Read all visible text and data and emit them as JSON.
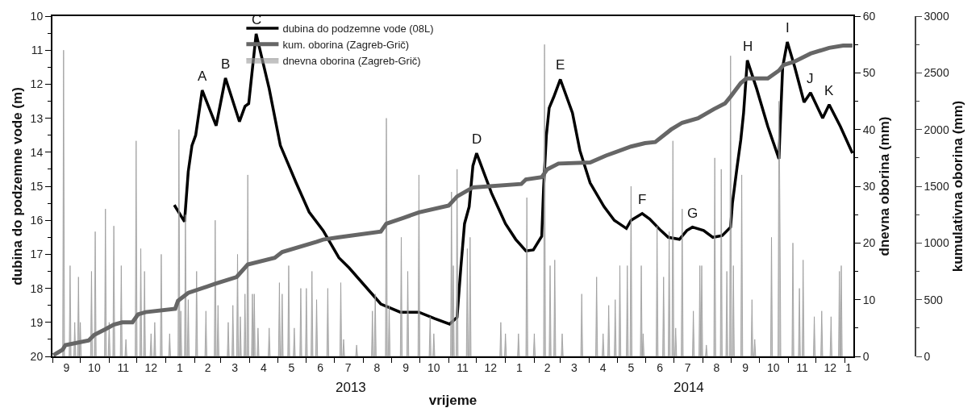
{
  "chart_data": {
    "type": "line",
    "xlabel": "vrijeme",
    "ylabel": "dubina do podzemne vode (m)",
    "y2label": "dnevna oborina (mm)",
    "y3label": "kumulativna oborina (mm)",
    "xlim": [
      "2012-09-01",
      "2015-01-10"
    ],
    "xticks": [
      {
        "value": "2012-09-01",
        "label": null
      },
      {
        "value": "2012-10-01",
        "label": null
      },
      {
        "value": "2012-11-01",
        "label": null
      },
      {
        "value": "2012-12-01",
        "label": null
      },
      {
        "value": "2013-01-01",
        "label": null
      },
      {
        "value": "2013-02-01",
        "label": null
      },
      {
        "value": "2013-03-01",
        "label": null
      },
      {
        "value": "2013-04-01",
        "label": null
      },
      {
        "value": "2013-05-01",
        "label": null
      },
      {
        "value": "2013-06-01",
        "label": null
      },
      {
        "value": "2013-07-01",
        "label": null
      },
      {
        "value": "2013-08-01",
        "label": null
      },
      {
        "value": "2013-09-01",
        "label": null
      },
      {
        "value": "2013-10-01",
        "label": null
      },
      {
        "value": "2013-11-01",
        "label": null
      },
      {
        "value": "2013-12-01",
        "label": null
      },
      {
        "value": "2014-01-01",
        "label": null
      },
      {
        "value": "2014-02-01",
        "label": null
      },
      {
        "value": "2014-03-01",
        "label": null
      },
      {
        "value": "2014-04-01",
        "label": null
      },
      {
        "value": "2014-05-01",
        "label": null
      },
      {
        "value": "2014-06-01",
        "label": null
      },
      {
        "value": "2014-07-01",
        "label": null
      },
      {
        "value": "2014-08-01",
        "label": null
      },
      {
        "value": "2014-09-01",
        "label": null
      },
      {
        "value": "2014-10-01",
        "label": null
      },
      {
        "value": "2014-11-01",
        "label": null
      },
      {
        "value": "2014-12-01",
        "label": null
      },
      {
        "value": "2015-01-01",
        "label": null
      },
      {
        "value": "2012-09-16",
        "label": "9"
      },
      {
        "value": "2012-10-16",
        "label": "10"
      },
      {
        "value": "2012-11-16",
        "label": "11"
      },
      {
        "value": "2012-12-16",
        "label": "12"
      },
      {
        "value": "2013-01-16",
        "label": "1"
      },
      {
        "value": "2013-02-15",
        "label": "2"
      },
      {
        "value": "2013-03-16",
        "label": "3"
      },
      {
        "value": "2013-04-16",
        "label": "4"
      },
      {
        "value": "2013-05-16",
        "label": "5"
      },
      {
        "value": "2013-06-16",
        "label": "6"
      },
      {
        "value": "2013-07-16",
        "label": "7"
      },
      {
        "value": "2013-08-16",
        "label": "8"
      },
      {
        "value": "2013-09-16",
        "label": "9"
      },
      {
        "value": "2013-10-16",
        "label": "10"
      },
      {
        "value": "2013-11-16",
        "label": "11"
      },
      {
        "value": "2013-12-16",
        "label": "12"
      },
      {
        "value": "2014-01-16",
        "label": "1"
      },
      {
        "value": "2014-02-15",
        "label": "2"
      },
      {
        "value": "2014-03-16",
        "label": "3"
      },
      {
        "value": "2014-04-16",
        "label": "4"
      },
      {
        "value": "2014-05-16",
        "label": "5"
      },
      {
        "value": "2014-06-16",
        "label": "6"
      },
      {
        "value": "2014-07-16",
        "label": "7"
      },
      {
        "value": "2014-08-16",
        "label": "8"
      },
      {
        "value": "2014-09-16",
        "label": "9"
      },
      {
        "value": "2014-10-16",
        "label": "10"
      },
      {
        "value": "2014-11-16",
        "label": "11"
      },
      {
        "value": "2014-12-16",
        "label": "12"
      },
      {
        "value": "2015-01-05",
        "label": "1"
      }
    ],
    "ylim": [
      20,
      10
    ],
    "yticks": [
      10,
      11,
      12,
      13,
      14,
      15,
      16,
      17,
      18,
      19,
      20,
      {
        "value": 10.5,
        "label": null
      },
      {
        "value": 11.5,
        "label": null
      },
      {
        "value": 12.5,
        "label": null
      },
      {
        "value": 13.5,
        "label": null
      },
      {
        "value": 14.5,
        "label": null
      },
      {
        "value": 15.5,
        "label": null
      },
      {
        "value": 16.5,
        "label": null
      },
      {
        "value": 17.5,
        "label": null
      },
      {
        "value": 18.5,
        "label": null
      },
      {
        "value": 19.5,
        "label": null
      }
    ],
    "y2lim": [
      0,
      60
    ],
    "y2ticks": [
      0,
      10,
      20,
      30,
      40,
      50,
      60,
      {
        "value": 5,
        "label": null
      },
      {
        "value": 15,
        "label": null
      },
      {
        "value": 25,
        "label": null
      },
      {
        "value": 35,
        "label": null
      },
      {
        "value": 45,
        "label": null
      },
      {
        "value": 55,
        "label": null
      }
    ],
    "y3lim": [
      0,
      3000
    ],
    "y3ticks": [
      0,
      500,
      1000,
      1500,
      2000,
      2500,
      3000,
      {
        "value": 250,
        "label": null
      },
      {
        "value": 750,
        "label": null
      },
      {
        "value": 1250,
        "label": null
      },
      {
        "value": 1750,
        "label": null
      },
      {
        "value": 2250,
        "label": null
      },
      {
        "value": 2750,
        "label": null
      }
    ],
    "legend": "top",
    "series": [
      {
        "name": "dubina do podzemne vode (08L)",
        "color": "#000000",
        "axis": "y",
        "x": [
          "2013-01-10",
          "2013-01-21",
          "2013-01-25",
          "2013-01-29",
          "2013-02-02",
          "2013-02-09",
          "2013-02-24",
          "2013-03-06",
          "2013-03-21",
          "2013-03-27",
          "2013-03-31",
          "2013-04-08",
          "2013-04-22",
          "2013-05-04",
          "2013-05-21",
          "2013-06-04",
          "2013-06-19",
          "2013-07-06",
          "2013-07-17",
          "2013-08-20",
          "2013-09-10",
          "2013-09-30",
          "2013-10-17",
          "2013-11-02",
          "2013-11-10",
          "2013-11-14",
          "2013-11-18",
          "2013-11-23",
          "2013-11-27",
          "2013-12-01",
          "2013-12-17",
          "2014-01-01",
          "2014-01-12",
          "2014-01-23",
          "2014-01-31",
          "2014-02-09",
          "2014-02-11",
          "2014-02-14",
          "2014-02-17",
          "2014-02-22",
          "2014-03-01",
          "2014-03-14",
          "2014-03-22",
          "2014-04-02",
          "2014-04-17",
          "2014-04-28",
          "2014-05-11",
          "2014-05-16",
          "2014-05-28",
          "2014-06-05",
          "2014-06-17",
          "2014-06-25",
          "2014-07-07",
          "2014-07-15",
          "2014-07-21",
          "2014-08-02",
          "2014-08-12",
          "2014-08-22",
          "2014-08-31",
          "2014-09-02",
          "2014-09-07",
          "2014-09-11",
          "2014-09-14",
          "2014-09-18",
          "2014-09-28",
          "2014-10-10",
          "2014-10-22",
          "2014-10-23",
          "2014-10-26",
          "2014-10-31",
          "2014-11-08",
          "2014-11-18",
          "2014-11-25",
          "2014-12-08",
          "2014-12-15",
          "2014-12-27",
          "2015-01-09"
        ],
        "values": [
          15.55,
          16.04,
          14.57,
          13.8,
          13.5,
          12.18,
          13.22,
          11.82,
          13.1,
          12.65,
          12.57,
          10.52,
          12.13,
          13.8,
          14.9,
          15.76,
          16.3,
          17.1,
          17.4,
          18.46,
          18.7,
          18.7,
          18.89,
          19.05,
          18.85,
          17.4,
          16.1,
          15.6,
          14.4,
          14.03,
          15.2,
          16.1,
          16.56,
          16.9,
          16.87,
          16.47,
          15.05,
          13.5,
          12.7,
          12.37,
          11.86,
          12.84,
          13.95,
          14.9,
          15.6,
          16.0,
          16.24,
          16.0,
          15.8,
          15.96,
          16.3,
          16.5,
          16.56,
          16.3,
          16.2,
          16.3,
          16.5,
          16.45,
          16.2,
          15.5,
          14.43,
          13.63,
          12.84,
          11.3,
          12.13,
          13.24,
          14.19,
          13.48,
          11.5,
          10.76,
          11.5,
          12.53,
          12.25,
          13.0,
          12.6,
          13.24,
          14.03
        ]
      },
      {
        "name": "kum. oborina (Zagreb-Grič)",
        "type": "line",
        "color": "#666666",
        "axis": "y3",
        "x": [
          "2012-09-02",
          "2012-09-12",
          "2012-09-15",
          "2012-10-10",
          "2012-10-16",
          "2012-10-28",
          "2012-11-06",
          "2012-11-15",
          "2012-11-26",
          "2012-12-02",
          "2012-12-10",
          "2013-01-11",
          "2013-01-14",
          "2013-01-25",
          "2013-02-23",
          "2013-03-18",
          "2013-03-30",
          "2013-04-28",
          "2013-05-06",
          "2013-06-12",
          "2013-06-19",
          "2013-07-06",
          "2013-08-20",
          "2013-08-26",
          "2013-09-13",
          "2013-09-30",
          "2013-11-01",
          "2013-11-10",
          "2013-11-27",
          "2014-01-18",
          "2014-01-23",
          "2014-02-09",
          "2014-02-15",
          "2014-02-27",
          "2014-04-02",
          "2014-04-19",
          "2014-05-16",
          "2014-05-31",
          "2014-06-11",
          "2014-06-28",
          "2014-07-10",
          "2014-07-27",
          "2014-08-13",
          "2014-08-25",
          "2014-08-31",
          "2014-09-11",
          "2014-09-17",
          "2014-10-10",
          "2014-10-22",
          "2014-10-27",
          "2014-11-08",
          "2014-11-25",
          "2014-12-15",
          "2014-12-30",
          "2015-01-09"
        ],
        "values": [
          10,
          60,
          100,
          140,
          190,
          240,
          280,
          300,
          300,
          370,
          390,
          420,
          490,
          560,
          640,
          700,
          810,
          870,
          920,
          1010,
          1030,
          1050,
          1100,
          1170,
          1220,
          1270,
          1330,
          1410,
          1490,
          1520,
          1560,
          1580,
          1650,
          1700,
          1710,
          1770,
          1850,
          1880,
          1890,
          2000,
          2060,
          2100,
          2180,
          2230,
          2290,
          2410,
          2450,
          2450,
          2520,
          2570,
          2600,
          2670,
          2720,
          2740,
          2740
        ]
      },
      {
        "name": "dnevna oborina (Zagreb-Grič)",
        "type": "area",
        "color": "#999999",
        "axis": "y2",
        "x": [
          "2012-09-12",
          "2012-09-13",
          "2012-09-14",
          "2012-09-19",
          "2012-09-20",
          "2012-09-21",
          "2012-09-24",
          "2012-09-25",
          "2012-09-26",
          "2012-09-28",
          "2012-09-29",
          "2012-09-30",
          "2012-10-01",
          "2012-10-02",
          "2012-10-12",
          "2012-10-13",
          "2012-10-14",
          "2012-10-16",
          "2012-10-17",
          "2012-10-18",
          "2012-10-27",
          "2012-10-28",
          "2012-10-29",
          "2012-10-31",
          "2012-11-01",
          "2012-11-02",
          "2012-11-05",
          "2012-11-06",
          "2012-11-07",
          "2012-11-13",
          "2012-11-14",
          "2012-11-15",
          "2012-11-18",
          "2012-11-19",
          "2012-11-20",
          "2012-11-29",
          "2012-11-30",
          "2012-12-01",
          "2012-12-04",
          "2012-12-05",
          "2012-12-06",
          "2012-12-08",
          "2012-12-09",
          "2012-12-10",
          "2012-12-15",
          "2012-12-16",
          "2012-12-17",
          "2012-12-19",
          "2012-12-20",
          "2012-12-21",
          "2012-12-26",
          "2012-12-27",
          "2012-12-28",
          "2013-01-04",
          "2013-01-05",
          "2013-01-06",
          "2013-01-14",
          "2013-01-15",
          "2013-01-16",
          "2013-01-17",
          "2013-01-18",
          "2013-01-21",
          "2013-01-22",
          "2013-01-23",
          "2013-01-24",
          "2013-01-25",
          "2013-01-26",
          "2013-02-02",
          "2013-02-03",
          "2013-02-04",
          "2013-02-12",
          "2013-02-13",
          "2013-02-14",
          "2013-02-22",
          "2013-02-23",
          "2013-02-24",
          "2013-02-25",
          "2013-02-26",
          "2013-02-27",
          "2013-03-08",
          "2013-03-09",
          "2013-03-10",
          "2013-03-13",
          "2013-03-14",
          "2013-03-15",
          "2013-03-18",
          "2013-03-19",
          "2013-03-20",
          "2013-03-21",
          "2013-03-22",
          "2013-03-23",
          "2013-03-26",
          "2013-03-27",
          "2013-03-28",
          "2013-03-29",
          "2013-03-30",
          "2013-03-31",
          "2013-04-03",
          "2013-04-04",
          "2013-04-05",
          "2013-04-06",
          "2013-04-07",
          "2013-04-09",
          "2013-04-10",
          "2013-04-11",
          "2013-04-21",
          "2013-04-22",
          "2013-04-23",
          "2013-05-02",
          "2013-05-03",
          "2013-05-04",
          "2013-05-05",
          "2013-05-06",
          "2013-05-07",
          "2013-05-12",
          "2013-05-13",
          "2013-05-14",
          "2013-05-18",
          "2013-05-19",
          "2013-05-20",
          "2013-05-25",
          "2013-05-26",
          "2013-05-27",
          "2013-05-31",
          "2013-06-01",
          "2013-06-02",
          "2013-06-06",
          "2013-06-07",
          "2013-06-08",
          "2013-06-11",
          "2013-06-12",
          "2013-06-13",
          "2013-06-23",
          "2013-06-24",
          "2013-06-25",
          "2013-07-07",
          "2013-07-08",
          "2013-07-09",
          "2013-07-10",
          "2013-07-11",
          "2013-07-12",
          "2013-07-24",
          "2013-07-25",
          "2013-07-26",
          "2013-08-10",
          "2013-08-11",
          "2013-08-12",
          "2013-08-13",
          "2013-08-14",
          "2013-08-15",
          "2013-08-25",
          "2013-08-26",
          "2013-08-27",
          "2013-08-28",
          "2013-08-29",
          "2013-08-30",
          "2013-09-10",
          "2013-09-11",
          "2013-09-12",
          "2013-09-17",
          "2013-09-18",
          "2013-09-19",
          "2013-09-29",
          "2013-09-30",
          "2013-10-01",
          "2013-10-11",
          "2013-10-12",
          "2013-10-13",
          "2013-10-15",
          "2013-10-16",
          "2013-10-17",
          "2013-11-03",
          "2013-11-04",
          "2013-11-05",
          "2013-11-06",
          "2013-11-07",
          "2013-11-09",
          "2013-11-10",
          "2013-11-11",
          "2013-11-20",
          "2013-11-21",
          "2013-11-22",
          "2013-11-23",
          "2013-11-24",
          "2013-11-25",
          "2013-12-26",
          "2013-12-27",
          "2013-12-28",
          "2013-12-31",
          "2014-01-01",
          "2014-01-02",
          "2014-01-14",
          "2014-01-15",
          "2014-01-16",
          "2014-01-23",
          "2014-01-24",
          "2014-01-25",
          "2014-01-31",
          "2014-02-01",
          "2014-02-02",
          "2014-02-11",
          "2014-02-12",
          "2014-02-13",
          "2014-02-17",
          "2014-02-18",
          "2014-02-19",
          "2014-02-22",
          "2014-02-23",
          "2014-02-24",
          "2014-03-02",
          "2014-03-03",
          "2014-03-04",
          "2014-03-23",
          "2014-03-24",
          "2014-03-25",
          "2014-04-08",
          "2014-04-09",
          "2014-04-10",
          "2014-04-15",
          "2014-04-16",
          "2014-04-17",
          "2014-04-21",
          "2014-04-22",
          "2014-04-23",
          "2014-04-28",
          "2014-04-29",
          "2014-04-30",
          "2014-05-03",
          "2014-05-04",
          "2014-05-05",
          "2014-05-11",
          "2014-05-12",
          "2014-05-13",
          "2014-05-15",
          "2014-05-16",
          "2014-05-17",
          "2014-05-26",
          "2014-05-27",
          "2014-05-28",
          "2014-05-29",
          "2014-05-30",
          "2014-06-12",
          "2014-06-13",
          "2014-06-14",
          "2014-06-19",
          "2014-06-20",
          "2014-06-21",
          "2014-06-25",
          "2014-06-26",
          "2014-06-27",
          "2014-06-29",
          "2014-06-30",
          "2014-07-01",
          "2014-07-02",
          "2014-07-03",
          "2014-07-04",
          "2014-07-09",
          "2014-07-10",
          "2014-07-11",
          "2014-07-21",
          "2014-07-22",
          "2014-07-23",
          "2014-07-28",
          "2014-07-29",
          "2014-07-30",
          "2014-07-31",
          "2014-08-01",
          "2014-08-04",
          "2014-08-05",
          "2014-08-06",
          "2014-08-13",
          "2014-08-14",
          "2014-08-15",
          "2014-08-20",
          "2014-08-21",
          "2014-08-22",
          "2014-08-26",
          "2014-08-27",
          "2014-08-28",
          "2014-08-30",
          "2014-08-31",
          "2014-09-01",
          "2014-09-02",
          "2014-09-03",
          "2014-09-04",
          "2014-09-11",
          "2014-09-12",
          "2014-09-13",
          "2014-09-22",
          "2014-09-23",
          "2014-09-24",
          "2014-09-25",
          "2014-09-26",
          "2014-09-27",
          "2014-10-13",
          "2014-10-14",
          "2014-10-15",
          "2014-10-21",
          "2014-10-22",
          "2014-10-23",
          "2014-10-24",
          "2014-11-05",
          "2014-11-06",
          "2014-11-07",
          "2014-11-12",
          "2014-11-13",
          "2014-11-14",
          "2014-11-16",
          "2014-11-17",
          "2014-11-18",
          "2014-11-28",
          "2014-11-29",
          "2014-11-30",
          "2014-12-06",
          "2014-12-07",
          "2014-12-08",
          "2014-12-16",
          "2014-12-17",
          "2014-12-18",
          "2014-12-25",
          "2014-12-26",
          "2014-12-27",
          "2014-12-28",
          "2014-12-29"
        ],
        "values": [
          0,
          54,
          0,
          0,
          16,
          0,
          0,
          6,
          0,
          0,
          14,
          0,
          6,
          0,
          0,
          15,
          0,
          0,
          22,
          0,
          0,
          26,
          0,
          0,
          6,
          0,
          0,
          23,
          0,
          0,
          16,
          0,
          0,
          3,
          0,
          0,
          38,
          0,
          0,
          19,
          0,
          0,
          15,
          0,
          0,
          4,
          0,
          0,
          6,
          0,
          0,
          18,
          0,
          0,
          4,
          0,
          0,
          40,
          0,
          8,
          0,
          0,
          25,
          0,
          0,
          10,
          0,
          0,
          15,
          0,
          0,
          8,
          0,
          0,
          24,
          0,
          0,
          9,
          0,
          0,
          6,
          0,
          0,
          9,
          0,
          0,
          18,
          0,
          0,
          7,
          0,
          0,
          11,
          0,
          0,
          32,
          0,
          0,
          11,
          0,
          11,
          0,
          0,
          5,
          0,
          0,
          5,
          0,
          0,
          13,
          0,
          0,
          11,
          0,
          0,
          16,
          0,
          0,
          5,
          0,
          0,
          12,
          0,
          0,
          12,
          0,
          0,
          15,
          0,
          0,
          10,
          0,
          0,
          12,
          0,
          0,
          13,
          0,
          0,
          3,
          0,
          0,
          2,
          0,
          0,
          8,
          0,
          0,
          11,
          0,
          0,
          42,
          0,
          0,
          9,
          0,
          0,
          21,
          0,
          0,
          15,
          0,
          0,
          32,
          0,
          0,
          7,
          0,
          0,
          4,
          0,
          0,
          29,
          0,
          16,
          0,
          0,
          33,
          0,
          0,
          19,
          0,
          0,
          21,
          0,
          0,
          6,
          0,
          0,
          4,
          0,
          0,
          4,
          0,
          0,
          28,
          0,
          0,
          4,
          0,
          0,
          55,
          0,
          0,
          16,
          0,
          0,
          17,
          0,
          0,
          4,
          0,
          0,
          11,
          0,
          0,
          14,
          0,
          0,
          4,
          0,
          0,
          9,
          0,
          0,
          10,
          0,
          0,
          16,
          0,
          0,
          16,
          0,
          0,
          30,
          0,
          0,
          16,
          0,
          4,
          0,
          0,
          23,
          0,
          0,
          14,
          0,
          0,
          22,
          0,
          0,
          38,
          0,
          0,
          5,
          0,
          0,
          26,
          0,
          0,
          8,
          0,
          0,
          16,
          0,
          16,
          0,
          0,
          2,
          0,
          0,
          35,
          0,
          0,
          33,
          0,
          0,
          15,
          0,
          0,
          53,
          0,
          0,
          16,
          0,
          0,
          32,
          0,
          0,
          10,
          0,
          0,
          3,
          0,
          0,
          21,
          0,
          0,
          45,
          27,
          0,
          0,
          20,
          0,
          0,
          12,
          0,
          0,
          17,
          0,
          0,
          7,
          0,
          0,
          8,
          0,
          0,
          7,
          0,
          0,
          15,
          0,
          16,
          0
        ]
      }
    ],
    "annotations": [
      {
        "text": "A",
        "x": "2013-02-09",
        "y": 12.18
      },
      {
        "text": "B",
        "x": "2013-03-06",
        "y": 11.82
      },
      {
        "text": "C",
        "x": "2013-04-08",
        "y": 10.52
      },
      {
        "text": "D",
        "x": "2013-12-01",
        "y": 14.03
      },
      {
        "text": "E",
        "x": "2014-03-01",
        "y": 11.86
      },
      {
        "text": "F",
        "x": "2014-05-28",
        "y": 15.8
      },
      {
        "text": "G",
        "x": "2014-07-21",
        "y": 16.2
      },
      {
        "text": "H",
        "x": "2014-09-18",
        "y": 11.3
      },
      {
        "text": "I",
        "x": "2014-10-31",
        "y": 10.76
      },
      {
        "text": "J",
        "x": "2014-11-25",
        "y": 12.25
      },
      {
        "text": "K",
        "x": "2014-12-15",
        "y": 12.6
      },
      "2013",
      "2014"
    ]
  }
}
